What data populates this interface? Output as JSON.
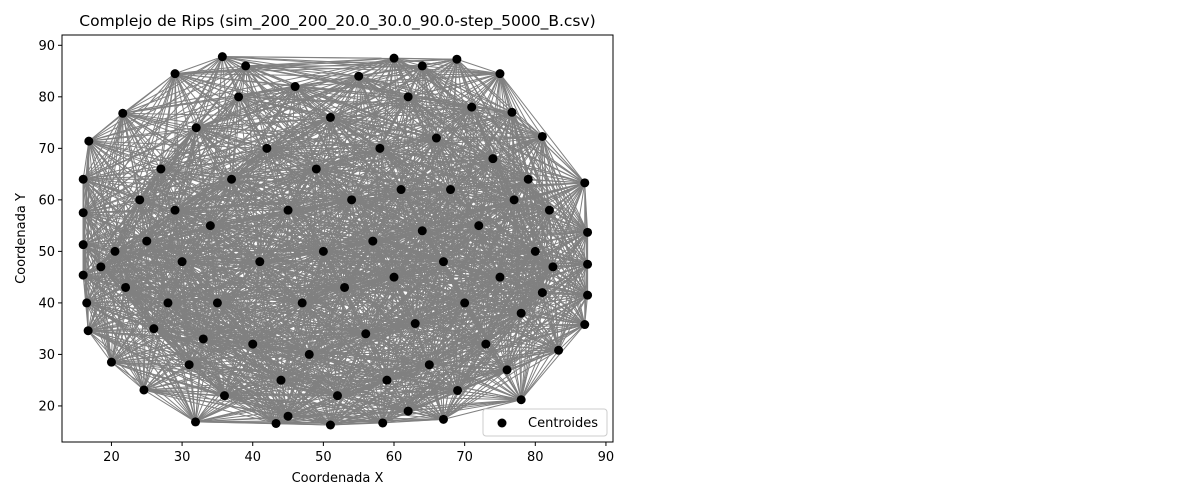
{
  "chart_data": {
    "type": "scatter",
    "title": "Complejo de Rips (sim_200_200_20.0_30.0_90.0-step_5000_B.csv)",
    "xlabel": "Coordenada X",
    "ylabel": "Coordenada Y",
    "xlim": [
      13,
      91
    ],
    "ylim": [
      13,
      92
    ],
    "xticks": [
      20,
      30,
      40,
      50,
      60,
      70,
      80,
      90
    ],
    "yticks": [
      20,
      30,
      40,
      50,
      60,
      70,
      80,
      90
    ],
    "grid": false,
    "legend": {
      "position": "lower-right",
      "entries": [
        "Centroides"
      ]
    },
    "colors": {
      "points": "#000000",
      "edges": "#808080"
    },
    "series": [
      {
        "name": "Centroides",
        "points": [
          [
            35.7,
            87.8
          ],
          [
            60.0,
            87.5
          ],
          [
            68.9,
            87.3
          ],
          [
            29.0,
            84.5
          ],
          [
            75.0,
            84.5
          ],
          [
            21.6,
            76.8
          ],
          [
            76.7,
            77.0
          ],
          [
            81.0,
            72.3
          ],
          [
            16.8,
            71.4
          ],
          [
            16.0,
            64.0
          ],
          [
            87.0,
            63.3
          ],
          [
            16.0,
            57.5
          ],
          [
            87.4,
            53.7
          ],
          [
            16.0,
            51.3
          ],
          [
            87.4,
            47.5
          ],
          [
            16.0,
            45.4
          ],
          [
            87.4,
            41.5
          ],
          [
            16.5,
            40.0
          ],
          [
            87.0,
            35.8
          ],
          [
            16.7,
            34.6
          ],
          [
            83.3,
            30.8
          ],
          [
            20.0,
            28.5
          ],
          [
            78.0,
            21.2
          ],
          [
            24.6,
            23.1
          ],
          [
            31.9,
            16.9
          ],
          [
            43.3,
            16.6
          ],
          [
            51.0,
            16.3
          ],
          [
            58.4,
            16.7
          ],
          [
            67.0,
            17.4
          ],
          [
            20.5,
            50.0
          ],
          [
            22.0,
            43.0
          ],
          [
            24.0,
            60.0
          ],
          [
            26.0,
            35.0
          ],
          [
            27.0,
            66.0
          ],
          [
            30.0,
            48.0
          ],
          [
            31.0,
            28.0
          ],
          [
            32.0,
            74.0
          ],
          [
            34.0,
            55.0
          ],
          [
            35.0,
            40.0
          ],
          [
            36.0,
            22.0
          ],
          [
            37.0,
            64.0
          ],
          [
            38.0,
            80.0
          ],
          [
            40.0,
            32.0
          ],
          [
            41.0,
            48.0
          ],
          [
            42.0,
            70.0
          ],
          [
            44.0,
            25.0
          ],
          [
            45.0,
            58.0
          ],
          [
            46.0,
            82.0
          ],
          [
            47.0,
            40.0
          ],
          [
            48.0,
            30.0
          ],
          [
            49.0,
            66.0
          ],
          [
            50.0,
            50.0
          ],
          [
            51.0,
            76.0
          ],
          [
            52.0,
            22.0
          ],
          [
            53.0,
            43.0
          ],
          [
            54.0,
            60.0
          ],
          [
            55.0,
            84.0
          ],
          [
            56.0,
            34.0
          ],
          [
            57.0,
            52.0
          ],
          [
            58.0,
            70.0
          ],
          [
            59.0,
            25.0
          ],
          [
            60.0,
            45.0
          ],
          [
            61.0,
            62.0
          ],
          [
            62.0,
            80.0
          ],
          [
            63.0,
            36.0
          ],
          [
            64.0,
            54.0
          ],
          [
            65.0,
            28.0
          ],
          [
            66.0,
            72.0
          ],
          [
            67.0,
            48.0
          ],
          [
            68.0,
            62.0
          ],
          [
            69.0,
            23.0
          ],
          [
            70.0,
            40.0
          ],
          [
            71.0,
            78.0
          ],
          [
            72.0,
            55.0
          ],
          [
            73.0,
            32.0
          ],
          [
            74.0,
            68.0
          ],
          [
            75.0,
            45.0
          ],
          [
            76.0,
            27.0
          ],
          [
            77.0,
            60.0
          ],
          [
            78.0,
            38.0
          ],
          [
            79.0,
            64.0
          ],
          [
            80.0,
            50.0
          ],
          [
            81.0,
            42.0
          ],
          [
            82.0,
            58.0
          ],
          [
            82.5,
            47.0
          ],
          [
            28.0,
            40.0
          ],
          [
            33.0,
            33.0
          ],
          [
            25.0,
            52.0
          ],
          [
            29.0,
            58.0
          ],
          [
            39.0,
            86.0
          ],
          [
            64.0,
            86.0
          ],
          [
            45.0,
            18.0
          ],
          [
            62.0,
            19.0
          ],
          [
            18.5,
            47.0
          ]
        ]
      }
    ]
  }
}
